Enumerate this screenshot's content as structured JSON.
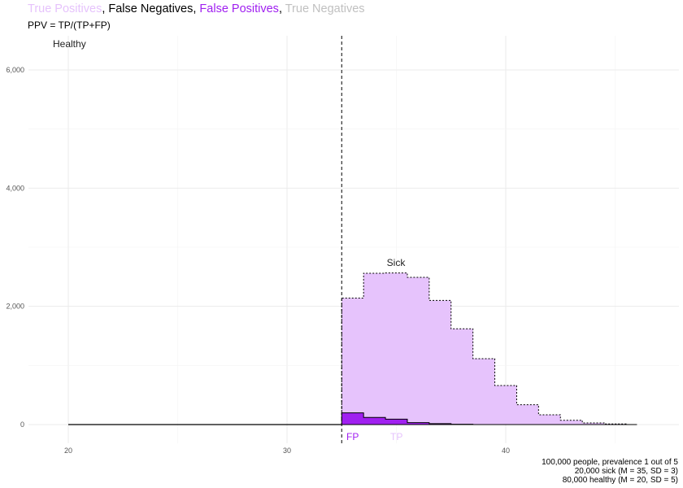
{
  "title_parts": [
    {
      "text": "True Positives",
      "color": "#e6c3fc"
    },
    {
      "text": ", ",
      "color": "#000000"
    },
    {
      "text": "False Negatives",
      "color": "#000000"
    },
    {
      "text": ", ",
      "color": "#000000"
    },
    {
      "text": "False Positives",
      "color": "#a020f0"
    },
    {
      "text": ", ",
      "color": "#000000"
    },
    {
      "text": "True Negatives",
      "color": "#c0c0c0"
    }
  ],
  "subtitle": "PPV = TP/(TP+FP)",
  "caption": [
    "100,000 people, prevalence 1 out of 5",
    "20,000 sick (M = 35, SD = 3)",
    "80,000 healthy (M = 20, SD = 5)"
  ],
  "chart_data": {
    "type": "area",
    "xlim": [
      18.5,
      47
    ],
    "ylim": [
      -300,
      6000
    ],
    "x_ticks": [
      20,
      30,
      40
    ],
    "x_tick_labels": [
      "20",
      "30",
      "40"
    ],
    "y_ticks": [
      0,
      2000,
      4000,
      6000
    ],
    "y_tick_labels": [
      "0",
      "2,000",
      "4,000",
      "6,000"
    ],
    "grid": true,
    "cutoff": 32.5,
    "bin_edges": [
      32.5,
      33.5,
      34.5,
      35.5,
      36.5,
      37.5,
      38.5,
      39.5,
      40.5,
      41.5,
      42.5,
      43.5,
      44.5,
      45.5,
      46
    ],
    "sick_counts": [
      2140,
      2560,
      2565,
      2490,
      2100,
      1620,
      1115,
      660,
      335,
      165,
      73,
      28,
      10,
      0
    ],
    "false_positive_counts": [
      197,
      120,
      92,
      32,
      15,
      5,
      0,
      0,
      0,
      0,
      0,
      0,
      0,
      0
    ],
    "healthy_below_cutoff_range": [
      20,
      32.5
    ],
    "colors": {
      "true_positive": "#e6c3fc",
      "false_positive": "#a020f0",
      "true_negative": "#c0c0c0"
    },
    "annotations": [
      {
        "text": "Healthy",
        "x": 20,
        "y": 6450
      },
      {
        "text": "Sick",
        "x": 35,
        "y": 2730
      },
      {
        "text": "FP",
        "x": 33,
        "y": -200,
        "color": "#a020f0"
      },
      {
        "text": "TP",
        "x": 35,
        "y": -200,
        "color": "#e6c3fc"
      }
    ]
  }
}
